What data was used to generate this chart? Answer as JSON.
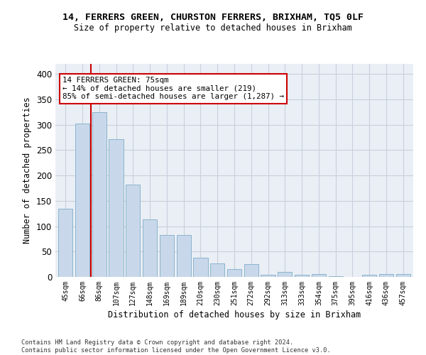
{
  "title1": "14, FERRERS GREEN, CHURSTON FERRERS, BRIXHAM, TQ5 0LF",
  "title2": "Size of property relative to detached houses in Brixham",
  "xlabel": "Distribution of detached houses by size in Brixham",
  "ylabel": "Number of detached properties",
  "categories": [
    "45sqm",
    "66sqm",
    "86sqm",
    "107sqm",
    "127sqm",
    "148sqm",
    "169sqm",
    "189sqm",
    "210sqm",
    "230sqm",
    "251sqm",
    "272sqm",
    "292sqm",
    "313sqm",
    "333sqm",
    "354sqm",
    "375sqm",
    "395sqm",
    "416sqm",
    "436sqm",
    "457sqm"
  ],
  "values": [
    135,
    302,
    325,
    272,
    182,
    113,
    83,
    83,
    38,
    27,
    16,
    25,
    4,
    10,
    4,
    5,
    1,
    0,
    4,
    5,
    5
  ],
  "bar_color": "#c8d8ea",
  "bar_edgecolor": "#8ab4cc",
  "vline_color": "#cc0000",
  "vline_xindex": 1.5,
  "annotation_text": "14 FERRERS GREEN: 75sqm\n← 14% of detached houses are smaller (219)\n85% of semi-detached houses are larger (1,287) →",
  "annotation_box_color": "#ffffff",
  "annotation_box_edgecolor": "#cc0000",
  "ylim": [
    0,
    420
  ],
  "yticks": [
    0,
    50,
    100,
    150,
    200,
    250,
    300,
    350,
    400
  ],
  "grid_color": "#c8d0dc",
  "background_color": "#eaeff5",
  "footer": "Contains HM Land Registry data © Crown copyright and database right 2024.\nContains public sector information licensed under the Open Government Licence v3.0."
}
